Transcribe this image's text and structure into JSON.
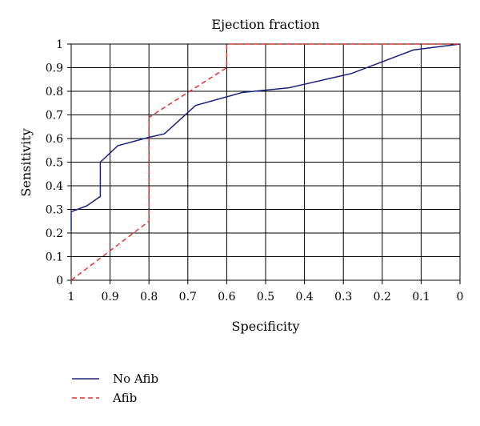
{
  "chart_data": {
    "type": "line",
    "title": "Ejection fraction",
    "xlabel": "Specificity",
    "ylabel": "Sensitivity",
    "xlim": [
      1,
      0
    ],
    "ylim": [
      0,
      1
    ],
    "x_ticks": [
      1,
      0.9,
      0.8,
      0.7,
      0.6,
      0.5,
      0.4,
      0.3,
      0.2,
      0.1,
      0
    ],
    "x_tick_labels": [
      "1",
      "0.9",
      "0.8",
      "0.7",
      "0.6",
      "0.5",
      "0.4",
      "0.3",
      "0.2",
      "0.1",
      "0"
    ],
    "y_ticks": [
      0,
      0.1,
      0.2,
      0.3,
      0.4,
      0.5,
      0.6,
      0.7,
      0.8,
      0.9,
      1
    ],
    "y_tick_labels": [
      "0",
      "0.1",
      "0.2",
      "0.3",
      "0.4",
      "0.5",
      "0.6",
      "0.7",
      "0.8",
      "0.9",
      "1"
    ],
    "grid": true,
    "legend_position": "bottom-left",
    "series": [
      {
        "name": "No Afib",
        "color": "#1a237e",
        "dash": "solid",
        "x": [
          1,
          1,
          0.96,
          0.925,
          0.925,
          0.88,
          0.8,
          0.76,
          0.68,
          0.56,
          0.44,
          0.28,
          0.12,
          0
        ],
        "y": [
          0.21,
          0.29,
          0.315,
          0.355,
          0.5,
          0.57,
          0.605,
          0.62,
          0.74,
          0.795,
          0.815,
          0.875,
          0.975,
          1.0
        ]
      },
      {
        "name": "Afib",
        "color": "#e8302a",
        "dash": "dashed",
        "x": [
          1,
          0.8,
          0.8,
          0.6,
          0.6,
          0
        ],
        "y": [
          0,
          0.25,
          0.69,
          0.9,
          1.0,
          1.0
        ]
      }
    ]
  }
}
